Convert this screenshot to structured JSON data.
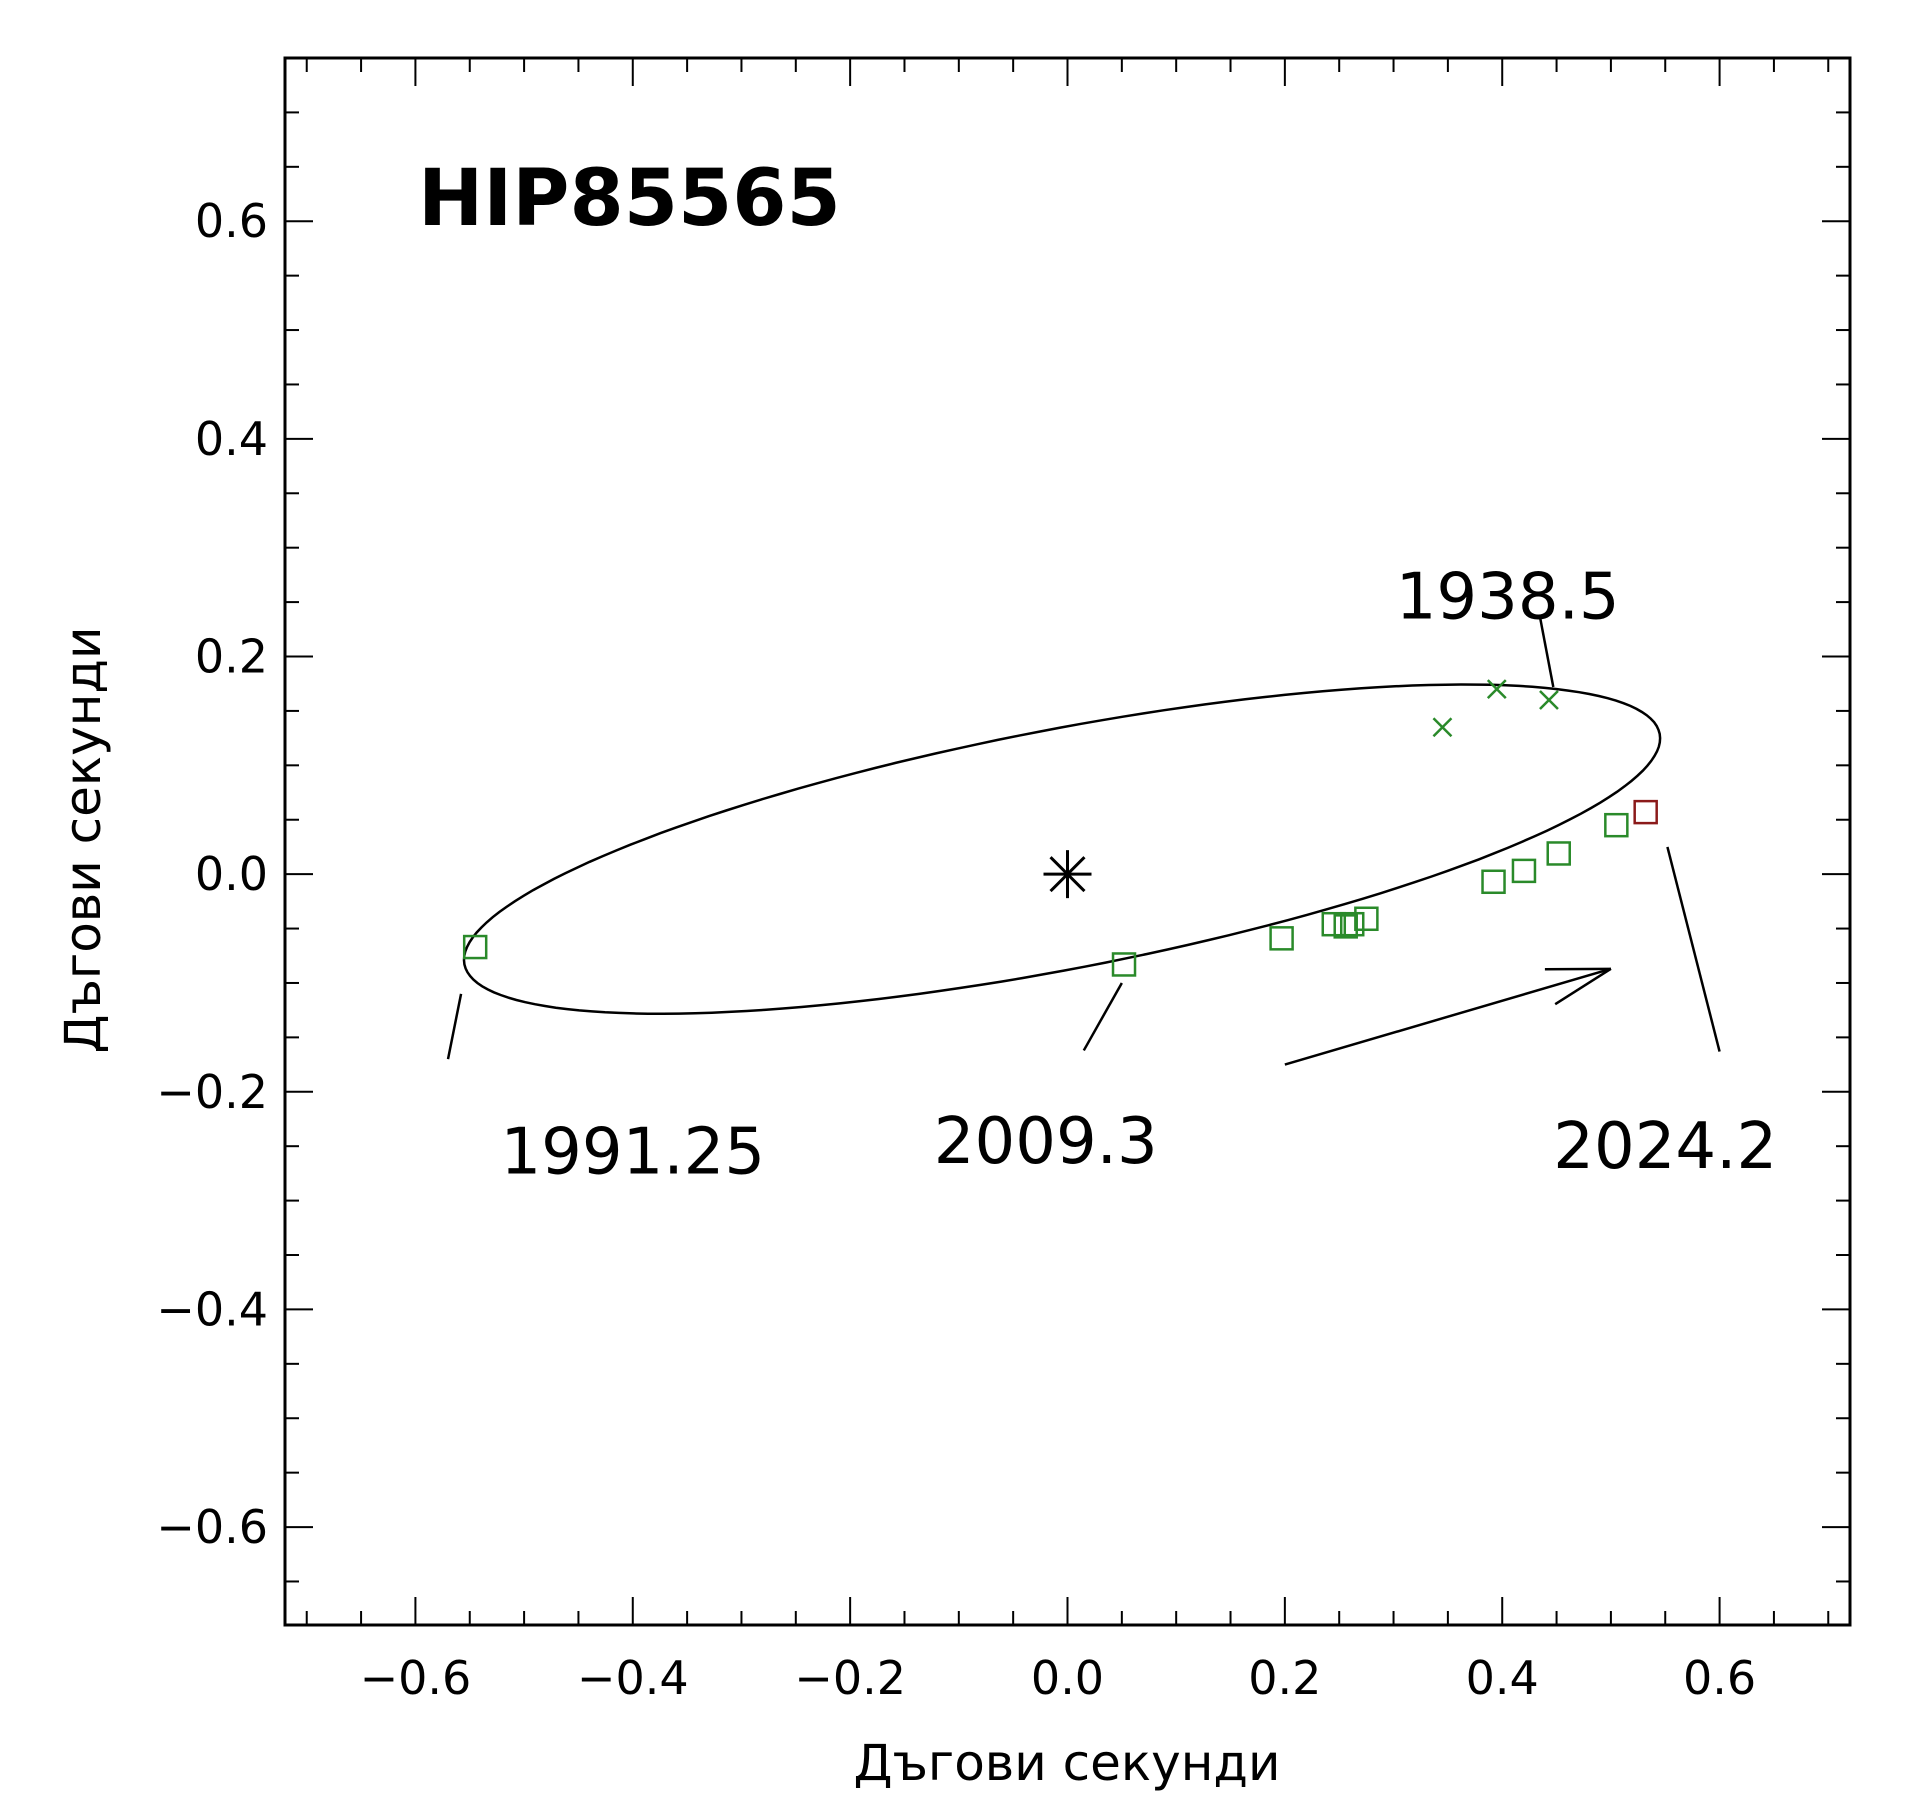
{
  "chart_data": {
    "type": "scatter",
    "title": "HIP85565",
    "xlabel": "Дъгови секунди",
    "ylabel": "Дъгови секунди",
    "xlim": [
      -0.72,
      0.72
    ],
    "ylim": [
      -0.69,
      0.75
    ],
    "x_ticks": [
      {
        "value": -0.6,
        "label": "−0.6"
      },
      {
        "value": -0.4,
        "label": "−0.4"
      },
      {
        "value": -0.2,
        "label": "−0.2"
      },
      {
        "value": 0.0,
        "label": "0.0"
      },
      {
        "value": 0.2,
        "label": "0.2"
      },
      {
        "value": 0.4,
        "label": "0.4"
      },
      {
        "value": 0.6,
        "label": "0.6"
      }
    ],
    "y_ticks": [
      {
        "value": 0.6,
        "label": "0.6"
      },
      {
        "value": 0.4,
        "label": "0.4"
      },
      {
        "value": 0.2,
        "label": "0.2"
      },
      {
        "value": 0.0,
        "label": "0.0"
      },
      {
        "value": -0.2,
        "label": "−0.2"
      },
      {
        "value": -0.4,
        "label": "−0.4"
      },
      {
        "value": -0.6,
        "label": "−0.6"
      }
    ],
    "orbit": {
      "center": [
        -0.005,
        0.023
      ],
      "semi_major": 0.56,
      "semi_minor": 0.11,
      "angle_deg": 10.9,
      "color": "#000000"
    },
    "primary": {
      "x": 0.0,
      "y": 0.0,
      "marker": "asterisk",
      "color": "#000000"
    },
    "series": [
      {
        "marker": "cross",
        "color": "#2a8a2a",
        "points": [
          [
            0.345,
            0.135
          ],
          [
            0.395,
            0.17
          ],
          [
            0.443,
            0.16
          ]
        ]
      },
      {
        "marker": "square",
        "color": "#2a8a2a",
        "points": [
          [
            -0.545,
            -0.067
          ],
          [
            0.052,
            -0.083
          ],
          [
            0.197,
            -0.059
          ],
          [
            0.245,
            -0.046
          ],
          [
            0.256,
            -0.048
          ],
          [
            0.262,
            -0.046
          ],
          [
            0.275,
            -0.041
          ],
          [
            0.392,
            -0.007
          ],
          [
            0.42,
            0.003
          ],
          [
            0.452,
            0.019
          ],
          [
            0.505,
            0.045
          ]
        ]
      },
      {
        "marker": "square",
        "color": "#8b1a1a",
        "points": [
          [
            0.532,
            0.057
          ]
        ]
      }
    ],
    "annotations": [
      {
        "text": "1938.5",
        "text_pos": [
          0.405,
          0.255
        ],
        "line_from": [
          0.435,
          0.235
        ],
        "line_to": [
          0.447,
          0.172
        ]
      },
      {
        "text": "1991.25",
        "text_pos": [
          -0.4,
          -0.255
        ],
        "line_from": [
          -0.558,
          -0.11
        ],
        "line_to": [
          -0.57,
          -0.17
        ]
      },
      {
        "text": "2009.3",
        "text_pos": [
          -0.02,
          -0.245
        ],
        "line_from": [
          0.05,
          -0.1
        ],
        "line_to": [
          0.015,
          -0.162
        ]
      },
      {
        "text": "2024.2",
        "text_pos": [
          0.55,
          -0.25
        ],
        "line_from": [
          0.552,
          0.025
        ],
        "line_to": [
          0.6,
          -0.163
        ]
      }
    ],
    "direction_arrow": {
      "from": [
        0.2,
        -0.175
      ],
      "to": [
        0.5,
        -0.087
      ]
    },
    "grid": false,
    "legend": "none"
  }
}
